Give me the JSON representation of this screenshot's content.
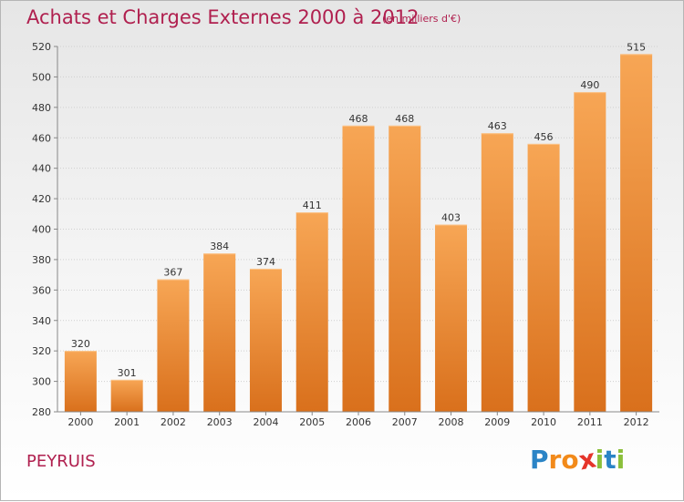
{
  "chart_data": {
    "type": "bar",
    "title": "Achats et Charges Externes 2000 à 2012",
    "subtitle": "(en milliers d'€)",
    "categories": [
      "2000",
      "2001",
      "2002",
      "2003",
      "2004",
      "2005",
      "2006",
      "2007",
      "2008",
      "2009",
      "2010",
      "2011",
      "2012"
    ],
    "values": [
      320,
      301,
      367,
      384,
      374,
      411,
      468,
      468,
      403,
      463,
      456,
      490,
      515
    ],
    "ylim": [
      280,
      520
    ],
    "yticks": [
      280,
      300,
      320,
      340,
      360,
      380,
      400,
      420,
      440,
      460,
      480,
      500,
      520
    ],
    "grid": true,
    "xlabel": "",
    "ylabel": "",
    "bar_color_top": "#f7a655",
    "bar_color_bottom": "#d9701c"
  },
  "place_name": "PEYRUIS",
  "logo": {
    "letters": [
      "P",
      "r",
      "o",
      "x",
      "i",
      "t",
      "i"
    ],
    "colors": [
      "#2b84c6",
      "#f28a1a",
      "#f28a1a",
      "#e5342a",
      "#8bbf3a",
      "#2b84c6",
      "#8bbf3a"
    ]
  }
}
